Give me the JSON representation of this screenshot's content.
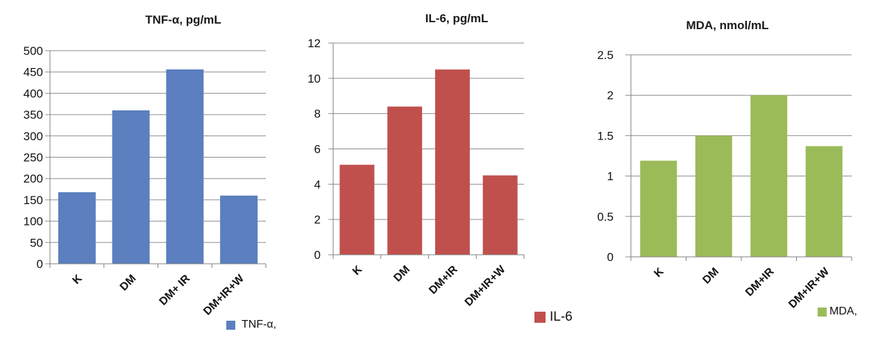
{
  "chart_data": [
    {
      "type": "bar",
      "title": "TNF-α, pg/mL",
      "categories": [
        "K",
        "DM",
        "DM+ IR",
        "DM+IR+W"
      ],
      "series": [
        {
          "name": "TNF-α,",
          "values": [
            168,
            360,
            456,
            160
          ]
        }
      ],
      "ylim": [
        0,
        500
      ],
      "yticks": [
        "0",
        "50",
        "100",
        "150",
        "200",
        "250",
        "300",
        "350",
        "400",
        "450",
        "500"
      ],
      "grid": true,
      "legend": "bottom-right",
      "color": "#5b7fbf"
    },
    {
      "type": "bar",
      "title": "IL-6, pg/mL",
      "categories": [
        "K",
        "DM",
        "DM+IR",
        "DM+IR+W"
      ],
      "series": [
        {
          "name": "IL-6",
          "values": [
            5.1,
            8.4,
            10.5,
            4.5
          ]
        }
      ],
      "ylim": [
        0,
        12
      ],
      "yticks": [
        "0",
        "2",
        "4",
        "6",
        "8",
        "10",
        "12"
      ],
      "grid": true,
      "legend": "bottom-right",
      "color": "#c0504d"
    },
    {
      "type": "bar",
      "title": "MDA, nmol/mL",
      "categories": [
        "K",
        "DM",
        "DM+IR",
        "DM+IR+W"
      ],
      "series": [
        {
          "name": "MDA,",
          "values": [
            1.19,
            1.5,
            2.0,
            1.37
          ]
        }
      ],
      "ylim": [
        0,
        2.5
      ],
      "yticks": [
        "0",
        "0.5",
        "1",
        "1.5",
        "2",
        "2.5"
      ],
      "grid": true,
      "legend": "bottom-right",
      "color": "#9bbb59"
    }
  ]
}
